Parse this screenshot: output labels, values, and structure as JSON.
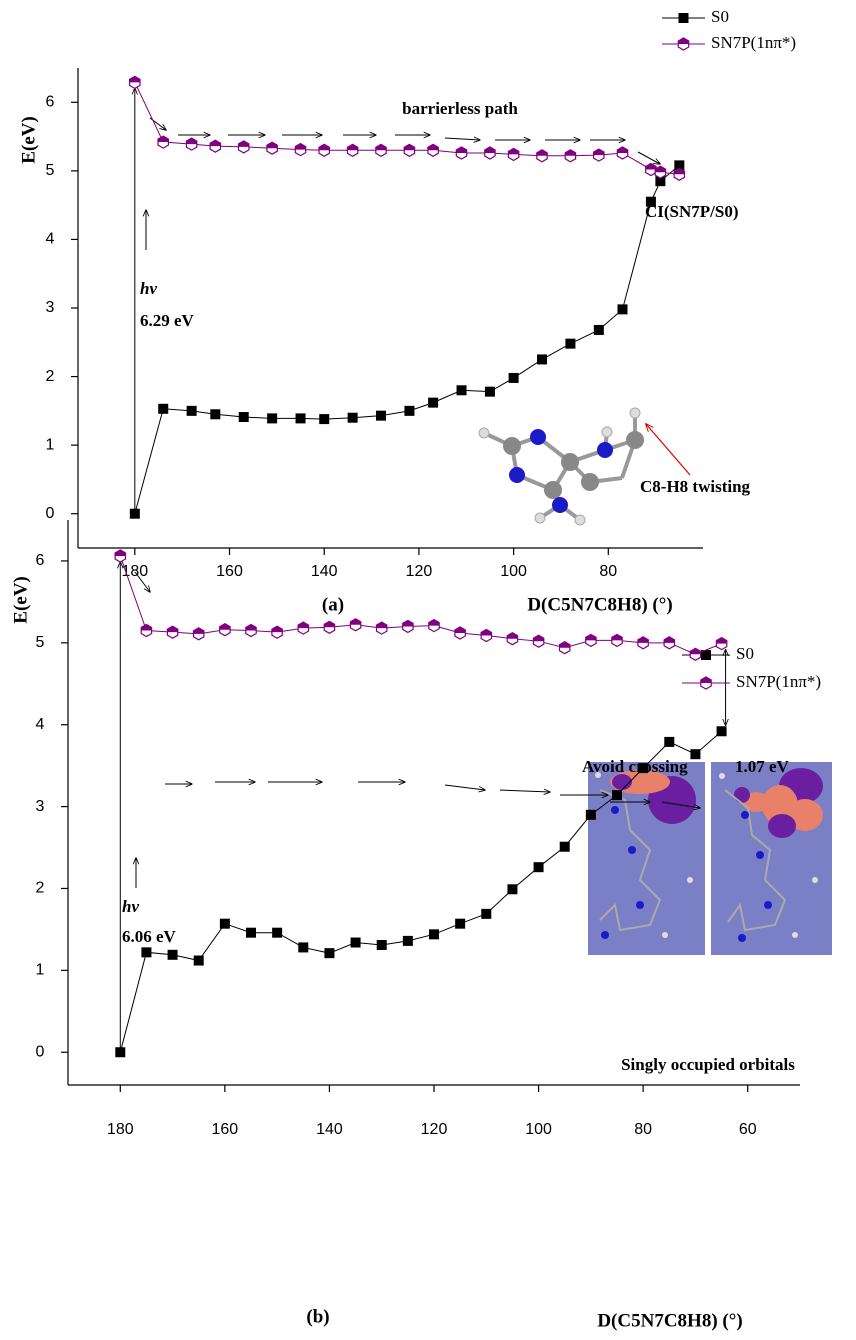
{
  "chart_data": [
    {
      "type": "line",
      "panel_label": "(a)",
      "x_label": "D(C5N7C8H8) (°)",
      "y_label": "E(eV)",
      "xlim": [
        192,
        60
      ],
      "xticks": [
        180,
        160,
        140,
        120,
        100,
        80
      ],
      "ylim": [
        -0.5,
        6.5
      ],
      "yticks": [
        0,
        1,
        2,
        3,
        4,
        5,
        6
      ],
      "legend": "top-right",
      "series": [
        {
          "name": "S0",
          "color": "#000000",
          "marker": "square",
          "x": [
            180,
            174,
            168,
            163,
            157,
            151,
            145,
            140,
            134,
            128,
            122,
            117,
            111,
            105,
            100,
            94,
            88,
            82,
            77,
            71,
            69,
            65
          ],
          "values": [
            0,
            1.53,
            1.5,
            1.45,
            1.41,
            1.39,
            1.39,
            1.38,
            1.4,
            1.43,
            1.5,
            1.62,
            1.8,
            1.78,
            1.98,
            2.25,
            2.48,
            2.68,
            2.98,
            4.55,
            4.85,
            5.08
          ]
        },
        {
          "name": "SN7P(1nπ*)",
          "color": "#800080",
          "marker": "hexagon",
          "x": [
            180,
            174,
            168,
            163,
            157,
            151,
            145,
            140,
            134,
            128,
            122,
            117,
            111,
            105,
            100,
            94,
            88,
            82,
            77,
            71,
            69,
            65
          ],
          "values": [
            6.29,
            5.42,
            5.39,
            5.36,
            5.35,
            5.33,
            5.31,
            5.3,
            5.3,
            5.3,
            5.3,
            5.3,
            5.26,
            5.26,
            5.24,
            5.22,
            5.22,
            5.23,
            5.26,
            5.02,
            4.98,
            4.95
          ]
        }
      ],
      "annotations": [
        "barrierless path",
        "hv",
        "6.29 eV",
        "CI(SN7P/S0)",
        "C8-H8 twisting"
      ]
    },
    {
      "type": "line",
      "panel_label": "(b)",
      "x_label": "D(C5N7C8H8) (°)",
      "y_label": "E(eV)",
      "xlim": [
        190,
        50
      ],
      "xticks": [
        180,
        160,
        140,
        120,
        100,
        80,
        60
      ],
      "ylim": [
        -0.4,
        6.5
      ],
      "yticks": [
        0,
        1,
        2,
        3,
        4,
        5,
        6
      ],
      "legend": "top-right",
      "series": [
        {
          "name": "S0",
          "color": "#000000",
          "marker": "square",
          "x": [
            180,
            175,
            170,
            165,
            160,
            155,
            150,
            145,
            140,
            135,
            130,
            125,
            120,
            115,
            110,
            105,
            100,
            95,
            90,
            85,
            80,
            75,
            70,
            65
          ],
          "values": [
            0,
            1.22,
            1.19,
            1.12,
            1.57,
            1.46,
            1.46,
            1.28,
            1.21,
            1.34,
            1.31,
            1.36,
            1.44,
            1.57,
            1.69,
            1.99,
            2.26,
            2.51,
            2.9,
            3.14,
            3.47,
            3.79,
            3.64,
            3.92
          ]
        },
        {
          "name": "SN7P(1nπ*)",
          "color": "#800080",
          "marker": "hexagon",
          "x": [
            180,
            175,
            170,
            165,
            160,
            155,
            150,
            145,
            140,
            135,
            130,
            125,
            120,
            115,
            110,
            105,
            100,
            95,
            90,
            85,
            80,
            75,
            70,
            65
          ],
          "values": [
            6.06,
            5.15,
            5.13,
            5.11,
            5.16,
            5.15,
            5.13,
            5.18,
            5.19,
            5.22,
            5.18,
            5.2,
            5.21,
            5.12,
            5.09,
            5.05,
            5.02,
            4.94,
            5.03,
            5.03,
            5.0,
            5.0,
            4.86,
            4.99
          ]
        }
      ],
      "annotations": [
        "Avoid crossing",
        "1.07 eV",
        "hv",
        "6.06 eV",
        "Singly occupied orbitals"
      ]
    }
  ]
}
